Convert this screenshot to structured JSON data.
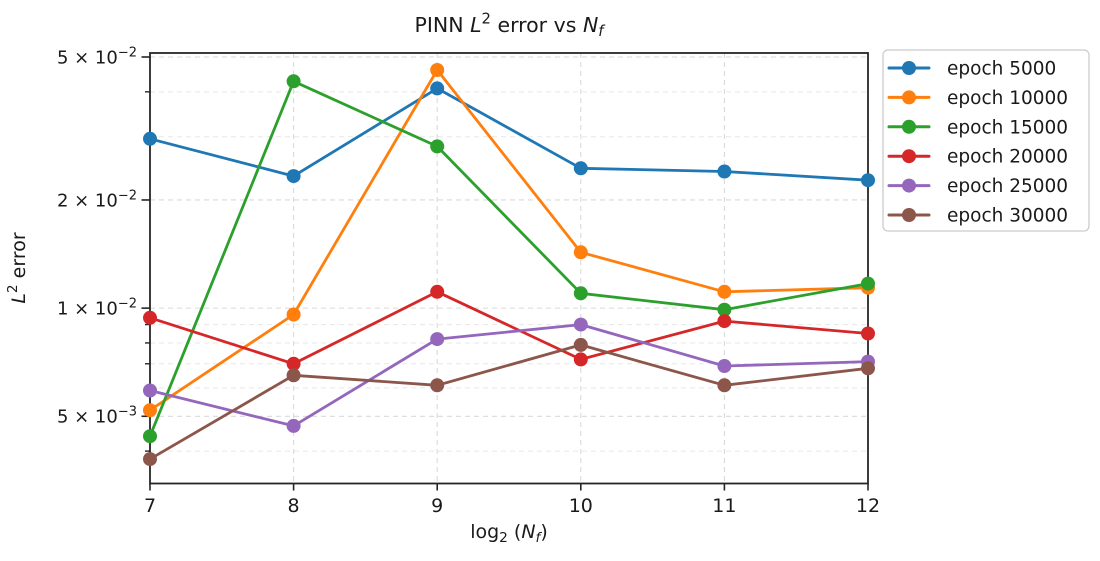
{
  "figure": {
    "background": "#ffffff",
    "text_color": "#1a1a1a",
    "spine_color": "#262626",
    "grid_major_color": "#d9d9d9",
    "grid_minor_color": "#e7e7e7",
    "legend_border_color": "#cccccc"
  },
  "chart_data": {
    "type": "line",
    "title_plain": "PINN L² error vs N_f",
    "xlabel_plain": "log₂ (N_f)",
    "ylabel_plain": "L² error",
    "title_parts": [
      {
        "t": "PINN ",
        "style": "normal"
      },
      {
        "t": "L",
        "style": "italic"
      },
      {
        "t": "2",
        "style": "sup"
      },
      {
        "t": " error vs ",
        "style": "normal"
      },
      {
        "t": "N",
        "style": "italic"
      },
      {
        "t": "f",
        "style": "sub-italic"
      }
    ],
    "xlabel_parts": [
      {
        "t": "log",
        "style": "normal"
      },
      {
        "t": "2",
        "style": "sub"
      },
      {
        "t": " (",
        "style": "normal"
      },
      {
        "t": "N",
        "style": "italic"
      },
      {
        "t": "f",
        "style": "sub-italic"
      },
      {
        "t": ")",
        "style": "normal"
      }
    ],
    "ylabel_parts": [
      {
        "t": "L",
        "style": "italic"
      },
      {
        "t": "2",
        "style": "sup"
      },
      {
        "t": " error",
        "style": "normal"
      }
    ],
    "x": [
      7,
      8,
      9,
      10,
      11,
      12
    ],
    "xlim": [
      7,
      12
    ],
    "ylim": [
      0.00325,
      0.0513
    ],
    "yscale": "log",
    "grid": "both-dashed",
    "xticks": [
      "7",
      "8",
      "9",
      "10",
      "11",
      "12"
    ],
    "yticks_major": [
      {
        "value": 0.05,
        "mantissa": "5",
        "exponent": "−2"
      },
      {
        "value": 0.02,
        "mantissa": "2",
        "exponent": "−2"
      },
      {
        "value": 0.01,
        "mantissa": "1",
        "exponent": "−2"
      },
      {
        "value": 0.005,
        "mantissa": "5",
        "exponent": "−3"
      }
    ],
    "yticks_minor": [
      0.04,
      0.03,
      0.009,
      0.008,
      0.007,
      0.006,
      0.004
    ],
    "series": [
      {
        "name": "epoch 5000",
        "color": "#1f77b4",
        "values": [
          0.0296,
          0.0233,
          0.0409,
          0.0245,
          0.024,
          0.0227
        ]
      },
      {
        "name": "epoch 10000",
        "color": "#ff7f0e",
        "values": [
          0.0052,
          0.0096,
          0.046,
          0.0143,
          0.0111,
          0.0114
        ]
      },
      {
        "name": "epoch 15000",
        "color": "#2ca02c",
        "values": [
          0.0044,
          0.0428,
          0.0282,
          0.011,
          0.0099,
          0.0117
        ]
      },
      {
        "name": "epoch 20000",
        "color": "#d62728",
        "values": [
          0.0094,
          0.007,
          0.0111,
          0.0072,
          0.0092,
          0.0085
        ]
      },
      {
        "name": "epoch 25000",
        "color": "#9467bd",
        "values": [
          0.0059,
          0.0047,
          0.0082,
          0.009,
          0.0069,
          0.0071
        ]
      },
      {
        "name": "epoch 30000",
        "color": "#8c564b",
        "values": [
          0.0038,
          0.0065,
          0.0061,
          0.0079,
          0.0061,
          0.0068
        ]
      }
    ],
    "legend": {
      "location": "outside-upper-right",
      "entries": [
        "epoch 5000",
        "epoch 10000",
        "epoch 15000",
        "epoch 20000",
        "epoch 25000",
        "epoch 30000"
      ]
    }
  }
}
